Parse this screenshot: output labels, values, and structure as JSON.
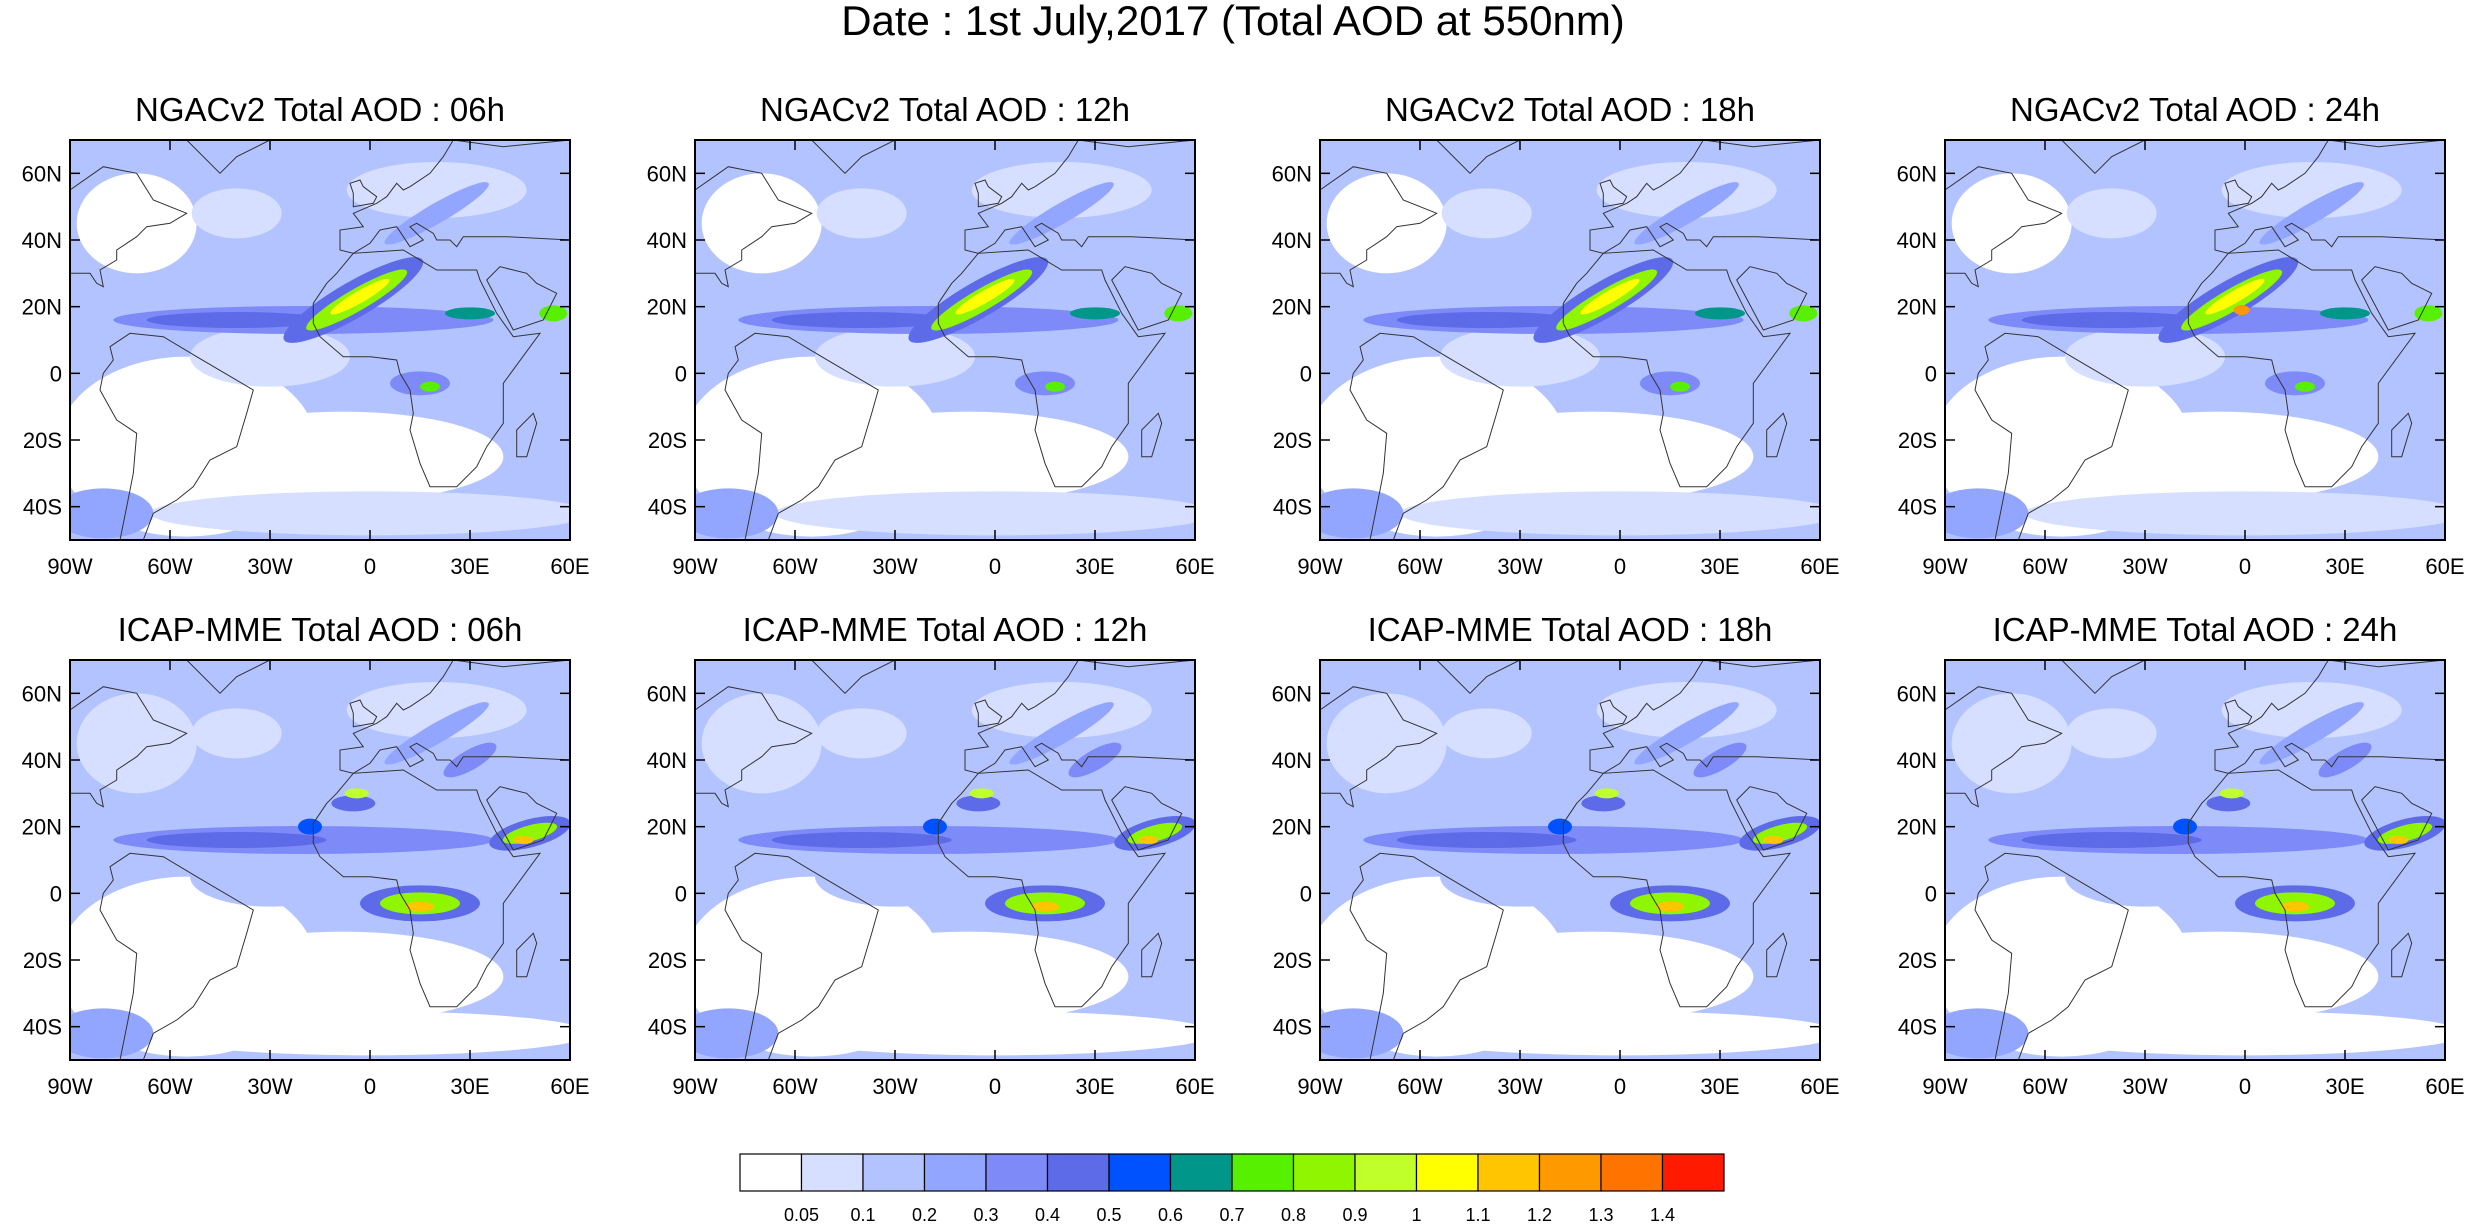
{
  "figure": {
    "title": "Date : 1st July,2017 (Total AOD at 550nm)"
  },
  "axes": {
    "lat_ticks": [
      {
        "value": 60,
        "label": "60N"
      },
      {
        "value": 40,
        "label": "40N"
      },
      {
        "value": 20,
        "label": "20N"
      },
      {
        "value": 0,
        "label": "0"
      },
      {
        "value": -20,
        "label": "20S"
      },
      {
        "value": -40,
        "label": "40S"
      }
    ],
    "lon_ticks": [
      {
        "value": -90,
        "label": "90W"
      },
      {
        "value": -60,
        "label": "60W"
      },
      {
        "value": -30,
        "label": "30W"
      },
      {
        "value": 0,
        "label": "0"
      },
      {
        "value": 30,
        "label": "30E"
      },
      {
        "value": 60,
        "label": "60E"
      }
    ],
    "lon_range": [
      -90,
      60
    ],
    "lat_range": [
      -50,
      70
    ]
  },
  "panels": [
    {
      "title": "NGACv2 Total AOD : 06h",
      "model": "NGAC",
      "hour": 6
    },
    {
      "title": "NGACv2 Total AOD : 12h",
      "model": "NGAC",
      "hour": 12
    },
    {
      "title": "NGACv2 Total AOD : 18h",
      "model": "NGAC",
      "hour": 18
    },
    {
      "title": "NGACv2 Total AOD : 24h",
      "model": "NGAC",
      "hour": 24
    },
    {
      "title": "ICAP-MME Total AOD : 06h",
      "model": "ICAP",
      "hour": 6
    },
    {
      "title": "ICAP-MME Total AOD : 12h",
      "model": "ICAP",
      "hour": 12
    },
    {
      "title": "ICAP-MME Total AOD : 18h",
      "model": "ICAP",
      "hour": 18
    },
    {
      "title": "ICAP-MME Total AOD : 24h",
      "model": "ICAP",
      "hour": 24
    }
  ],
  "colorbar": {
    "levels": [
      "0.05",
      "0.1",
      "0.2",
      "0.3",
      "0.4",
      "0.5",
      "0.6",
      "0.7",
      "0.8",
      "0.9",
      "1",
      "1.1",
      "1.2",
      "1.3",
      "1.4"
    ],
    "colors": [
      "#ffffff",
      "#d6dfff",
      "#b3c3ff",
      "#92a6ff",
      "#7d8af7",
      "#5e6be8",
      "#0051ff",
      "#00968a",
      "#56f000",
      "#8ff500",
      "#c0ff2a",
      "#ffff00",
      "#ffc500",
      "#ff9900",
      "#ff7300",
      "#ff1a00"
    ]
  }
}
